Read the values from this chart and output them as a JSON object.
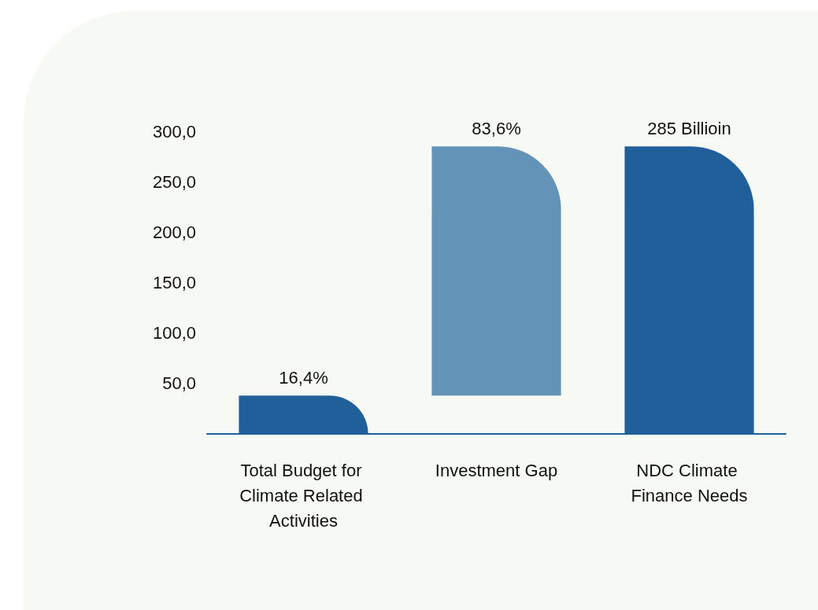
{
  "chart_data": {
    "type": "bar",
    "categories": [
      "Total Budget for Climate Related Activities",
      "Investment Gap",
      "NDC Climate Finance Needs"
    ],
    "values": [
      38,
      247,
      285
    ],
    "base": [
      0,
      38,
      0
    ],
    "colors": [
      "#215f9a",
      "#6393b6",
      "#215f9a"
    ],
    "value_labels": [
      null,
      null,
      "285 Billioin"
    ],
    "annotations": [
      {
        "text": "16,4%",
        "x": "Total Budget for Climate Related Activities",
        "y": 38
      },
      {
        "text": "83,6%",
        "x": "Investment Gap",
        "y": 285
      }
    ],
    "ylim": [
      0,
      300
    ],
    "yticks": [
      {
        "value": 50,
        "label": "50,0"
      },
      {
        "value": 100,
        "label": "100,0"
      },
      {
        "value": 150,
        "label": "150,0"
      },
      {
        "value": 200,
        "label": "200,0"
      },
      {
        "value": 250,
        "label": "250,0"
      },
      {
        "value": 300,
        "label": "300,0"
      }
    ],
    "grid": false
  }
}
